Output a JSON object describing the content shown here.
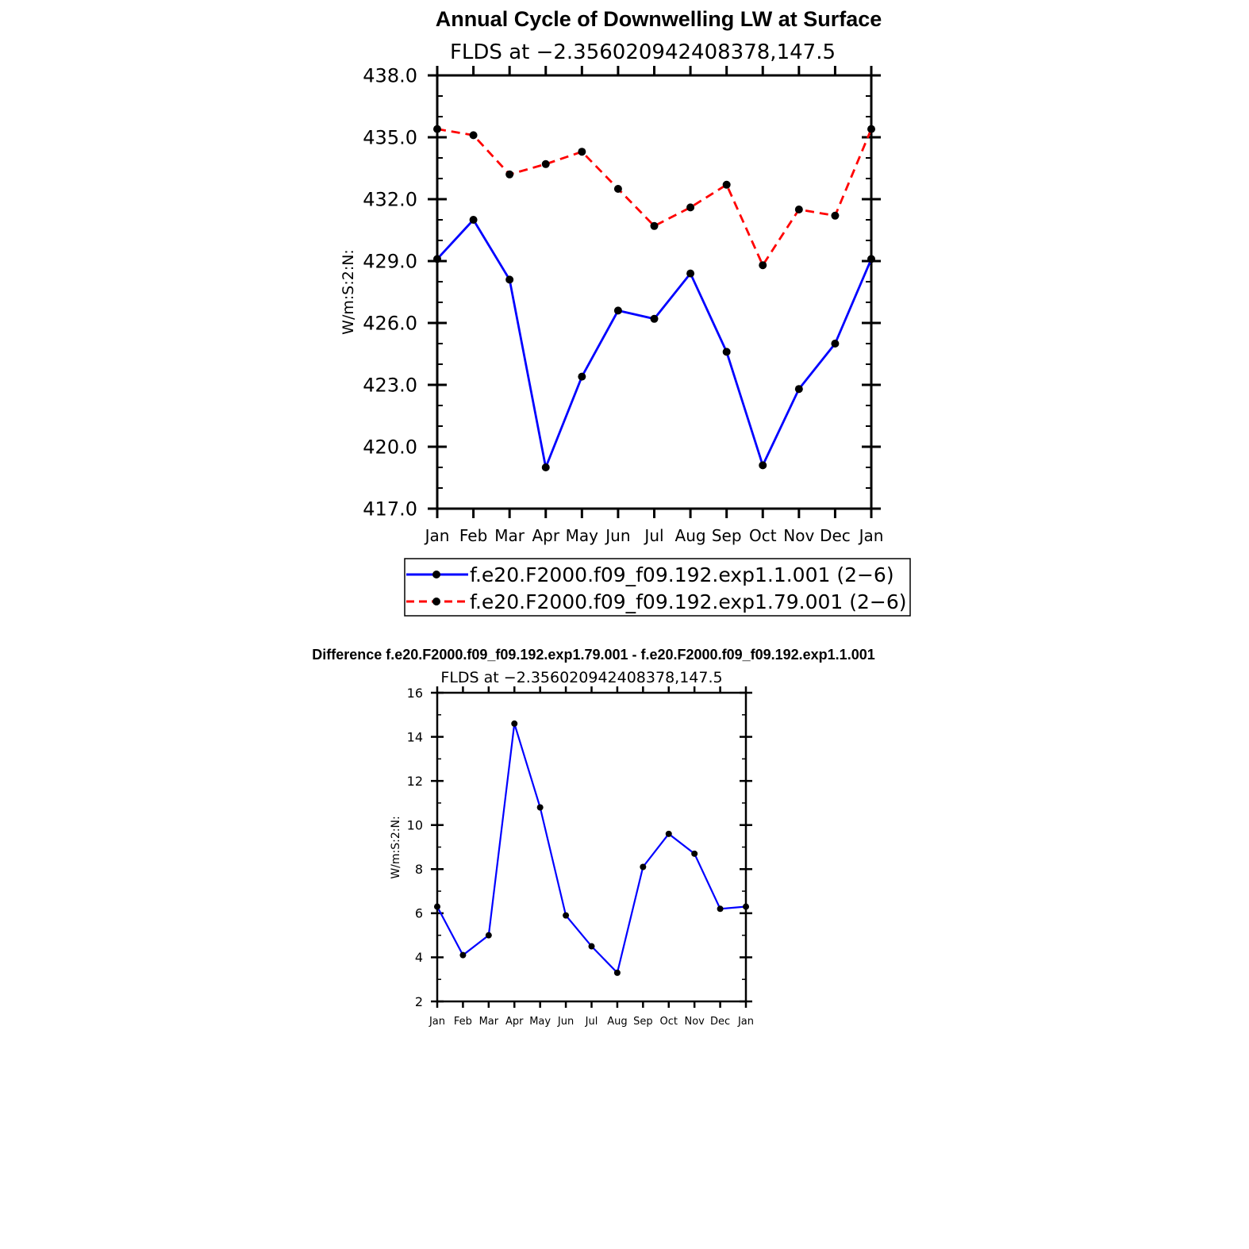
{
  "chart_data": [
    {
      "type": "line",
      "title": "Annual Cycle of Downwelling LW at Surface",
      "subtitle": "FLDS at −2.356020942408378,147.5",
      "ylabel": "W/m:S:2:N:",
      "xlabel": "",
      "categories": [
        "Jan",
        "Feb",
        "Mar",
        "Apr",
        "May",
        "Jun",
        "Jul",
        "Aug",
        "Sep",
        "Oct",
        "Nov",
        "Dec",
        "Jan"
      ],
      "ylim": [
        417.0,
        438.0
      ],
      "yticks": [
        "417.0",
        "420.0",
        "423.0",
        "426.0",
        "429.0",
        "432.0",
        "435.0",
        "438.0"
      ],
      "series": [
        {
          "name": "f.e20.F2000.f09_f09.192.exp1.1.001 (2−6)",
          "color": "#0000ff",
          "dash": "solid",
          "values": [
            429.1,
            431.0,
            428.1,
            419.0,
            423.4,
            426.6,
            426.2,
            428.4,
            424.6,
            419.1,
            422.8,
            425.0,
            429.1
          ]
        },
        {
          "name": "f.e20.F2000.f09_f09.192.exp1.79.001 (2−6)",
          "color": "#ff0000",
          "dash": "dashed",
          "values": [
            435.4,
            435.1,
            433.2,
            433.7,
            434.3,
            432.5,
            430.7,
            431.6,
            432.7,
            428.8,
            431.5,
            431.2,
            435.4
          ]
        }
      ],
      "legend": "bottom"
    },
    {
      "type": "line",
      "title": "Difference f.e20.F2000.f09_f09.192.exp1.79.001 - f.e20.F2000.f09_f09.192.exp1.1.001",
      "subtitle": "FLDS at −2.356020942408378,147.5",
      "ylabel": "W/m:S:2:N:",
      "xlabel": "",
      "categories": [
        "Jan",
        "Feb",
        "Mar",
        "Apr",
        "May",
        "Jun",
        "Jul",
        "Aug",
        "Sep",
        "Oct",
        "Nov",
        "Dec",
        "Jan"
      ],
      "ylim": [
        2,
        16
      ],
      "yticks": [
        "2",
        "4",
        "6",
        "8",
        "10",
        "12",
        "14",
        "16"
      ],
      "series": [
        {
          "name": "difference",
          "color": "#0000ff",
          "dash": "solid",
          "values": [
            6.3,
            4.1,
            5.0,
            14.6,
            10.8,
            5.9,
            4.5,
            3.3,
            8.1,
            9.6,
            8.7,
            6.2,
            6.3
          ]
        }
      ]
    }
  ]
}
